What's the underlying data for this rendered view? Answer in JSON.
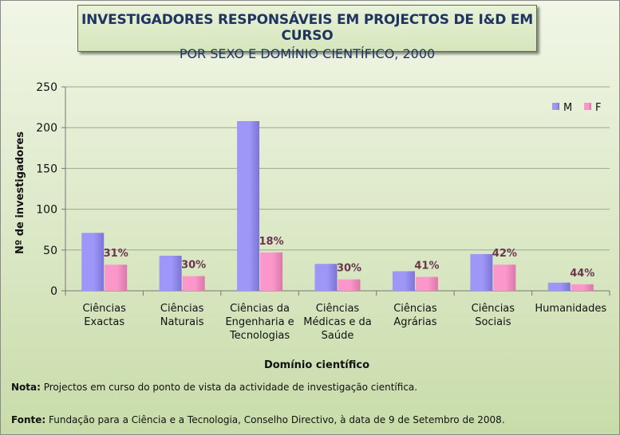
{
  "title": {
    "line1": "INVESTIGADORES RESPONSÁVEIS EM PROJECTOS DE I&D EM CURSO",
    "line2": "POR SEXO E DOMÍNIO CIENTÍFICO, 2000"
  },
  "notes": {
    "nota_label": "Nota:",
    "nota_text": " Projectos em curso do ponto de vista da actividade de investigação científica.",
    "fonte_label": "Fonte:",
    "fonte_text": " Fundação para a Ciência e a Tecnologia, Conselho Directivo, à data de 9 de Setembro de 2008."
  },
  "colors": {
    "M": "#9f97f7",
    "F": "#fc97cb",
    "label": "#6b3550"
  },
  "chart_data": {
    "type": "bar",
    "xlabel": "Domínio científico",
    "ylabel": "Nº de investigadores",
    "ylim": [
      0,
      250
    ],
    "yticks": [
      0,
      50,
      100,
      150,
      200,
      250
    ],
    "legend_position": "top-right",
    "categories": [
      [
        "Ciências",
        "Exactas"
      ],
      [
        "Ciências",
        "Naturais"
      ],
      [
        "Ciências da",
        "Engenharia e",
        "Tecnologias"
      ],
      [
        "Ciências",
        "Médicas e da",
        "Saúde"
      ],
      [
        "Ciências",
        "Agrárias"
      ],
      [
        "Ciências",
        "Sociais"
      ],
      [
        "Humanidades"
      ]
    ],
    "series": [
      {
        "name": "M",
        "values": [
          71,
          43,
          208,
          33,
          24,
          45,
          10
        ]
      },
      {
        "name": "F",
        "values": [
          32,
          18,
          47,
          14,
          17,
          32,
          8
        ]
      }
    ],
    "data_labels": [
      "31%",
      "30%",
      "18%",
      "30%",
      "41%",
      "42%",
      "44%"
    ]
  }
}
